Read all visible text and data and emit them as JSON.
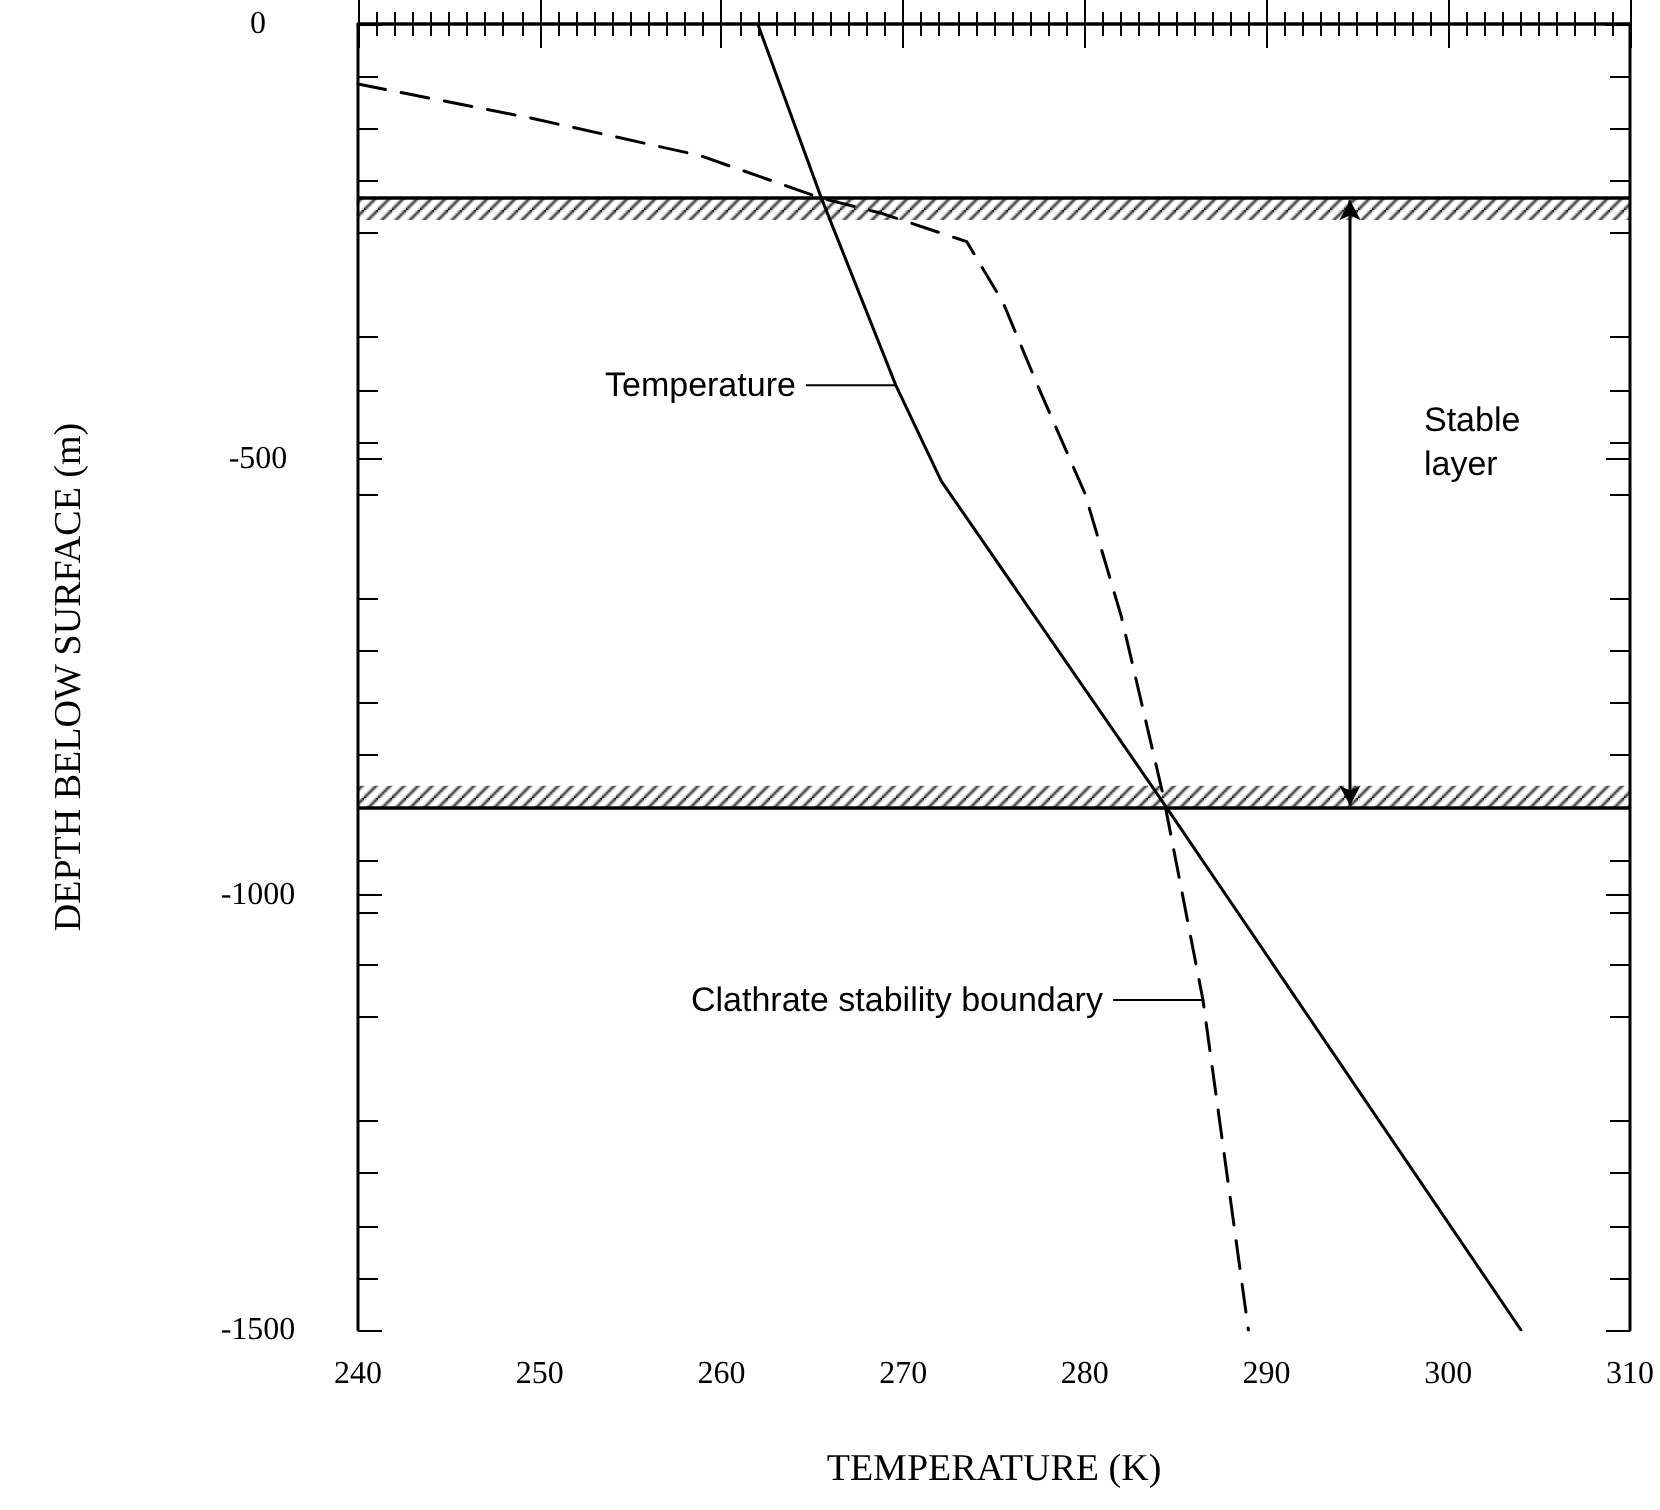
{
  "chart_data": {
    "type": "line",
    "xlabel": "TEMPERATURE (K)",
    "ylabel": "DEPTH BELOW SURFACE (m)",
    "xlim": [
      240,
      310
    ],
    "xticks": [
      240,
      250,
      260,
      270,
      280,
      290,
      300,
      310
    ],
    "ylim": [
      -1500,
      0
    ],
    "yticks": [
      0,
      -500,
      -1000,
      -1500
    ],
    "series": [
      {
        "color": "#000000",
        "line_style": "solid",
        "x": [
          262,
          265.5,
          269.6,
          272.1,
          284.5,
          304
        ],
        "values": [
          0,
          -200,
          -415,
          -525,
          -900,
          -1500
        ]
      },
      {
        "color": "#000000",
        "line_style": "dashed",
        "x": [
          240,
          249.5,
          258.8,
          265.5,
          268.9,
          273.5,
          275.5,
          277.5,
          280,
          282,
          284.3,
          286.5,
          289
        ],
        "values": [
          -69,
          -108,
          -151,
          -200,
          -218,
          -250,
          -320,
          -420,
          -539,
          -680,
          -885,
          -1121,
          -1500
        ]
      }
    ],
    "ref_lines": [
      {
        "axis": "y",
        "value": -200,
        "color": "#000000"
      },
      {
        "axis": "y",
        "value": -900,
        "color": "#000000"
      }
    ],
    "bands": [
      {
        "axis": "y",
        "from": -200,
        "to": -225,
        "color": "#000000"
      },
      {
        "axis": "y",
        "from": -875,
        "to": -900,
        "color": "#000000"
      }
    ],
    "annotations": [
      {
        "text": "Temperature",
        "x": 269.6,
        "y": -415
      },
      {
        "text": "Clathrate stability boundary",
        "x": 286.5,
        "y": -1121
      },
      "Stable layer"
    ],
    "grid": false,
    "marker": "none"
  }
}
